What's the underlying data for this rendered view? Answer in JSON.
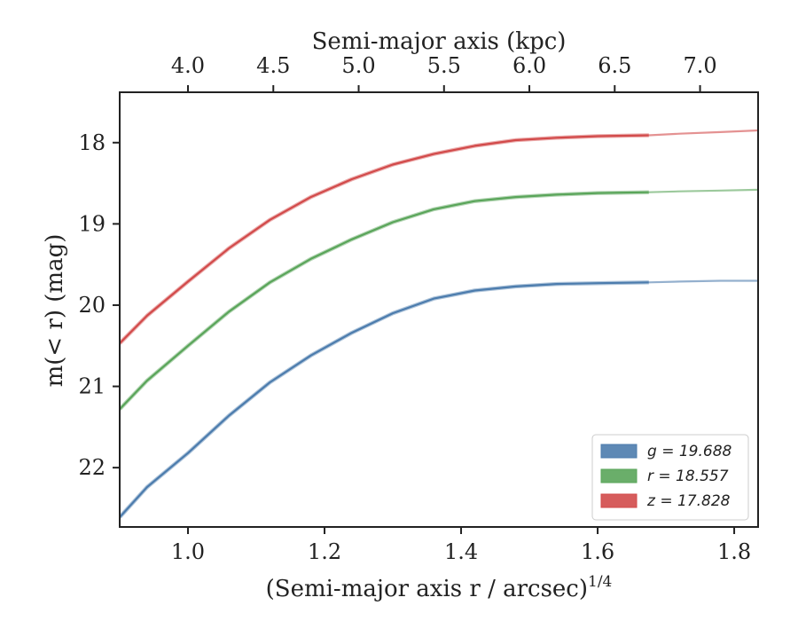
{
  "chart_data": {
    "type": "line",
    "xlabel": "(Semi-major axis r / arcsec)",
    "xlabel_exponent": "1/4",
    "ylabel": "m(< r) (mag)",
    "top_xlabel": "Semi-major axis (kpc)",
    "xlim": [
      0.9,
      1.835
    ],
    "ylim": [
      22.73,
      17.38
    ],
    "y_inverted": true,
    "x_ticks": [
      "1.0",
      "1.2",
      "1.4",
      "1.6",
      "1.8"
    ],
    "y_ticks": [
      "18",
      "19",
      "20",
      "21",
      "22"
    ],
    "top_ticks": [
      "4.0",
      "4.5",
      "5.0",
      "5.5",
      "6.0",
      "6.5",
      "7.0"
    ],
    "top_tick_positions": [
      1.0,
      1.125,
      1.25,
      1.375,
      1.5,
      1.625,
      1.75
    ],
    "grid": false,
    "legend_position": "lower-right",
    "series": [
      {
        "name": "g = 19.688",
        "legend_text": "g = 19.688",
        "color": "#4c7cad",
        "x": [
          0.9,
          0.94,
          1.0,
          1.06,
          1.12,
          1.18,
          1.24,
          1.3,
          1.36,
          1.42,
          1.48,
          1.54,
          1.6,
          1.675
        ],
        "y": [
          22.61,
          22.24,
          21.82,
          21.36,
          20.95,
          20.62,
          20.34,
          20.1,
          19.92,
          19.82,
          19.77,
          19.74,
          19.73,
          19.72
        ],
        "ext_x": [
          1.675,
          1.72,
          1.78,
          1.835
        ],
        "ext_y": [
          19.72,
          19.71,
          19.7,
          19.7
        ]
      },
      {
        "name": "r = 18.557",
        "legend_text": "r = 18.557",
        "color": "#5aa55a",
        "x": [
          0.9,
          0.94,
          1.0,
          1.06,
          1.12,
          1.18,
          1.24,
          1.3,
          1.36,
          1.42,
          1.48,
          1.54,
          1.6,
          1.675
        ],
        "y": [
          21.28,
          20.93,
          20.5,
          20.08,
          19.72,
          19.43,
          19.19,
          18.98,
          18.82,
          18.72,
          18.67,
          18.64,
          18.62,
          18.61
        ],
        "ext_x": [
          1.675,
          1.72,
          1.78,
          1.835
        ],
        "ext_y": [
          18.61,
          18.6,
          18.59,
          18.58
        ]
      },
      {
        "name": "z = 17.828",
        "legend_text": "z = 17.828",
        "color": "#d24a4a",
        "x": [
          0.9,
          0.94,
          1.0,
          1.06,
          1.12,
          1.18,
          1.24,
          1.3,
          1.36,
          1.42,
          1.48,
          1.54,
          1.6,
          1.675
        ],
        "y": [
          20.47,
          20.13,
          19.71,
          19.3,
          18.95,
          18.67,
          18.45,
          18.27,
          18.14,
          18.04,
          17.97,
          17.94,
          17.92,
          17.91
        ],
        "ext_x": [
          1.675,
          1.72,
          1.78,
          1.835
        ],
        "ext_y": [
          17.91,
          17.89,
          17.87,
          17.85
        ]
      }
    ]
  }
}
